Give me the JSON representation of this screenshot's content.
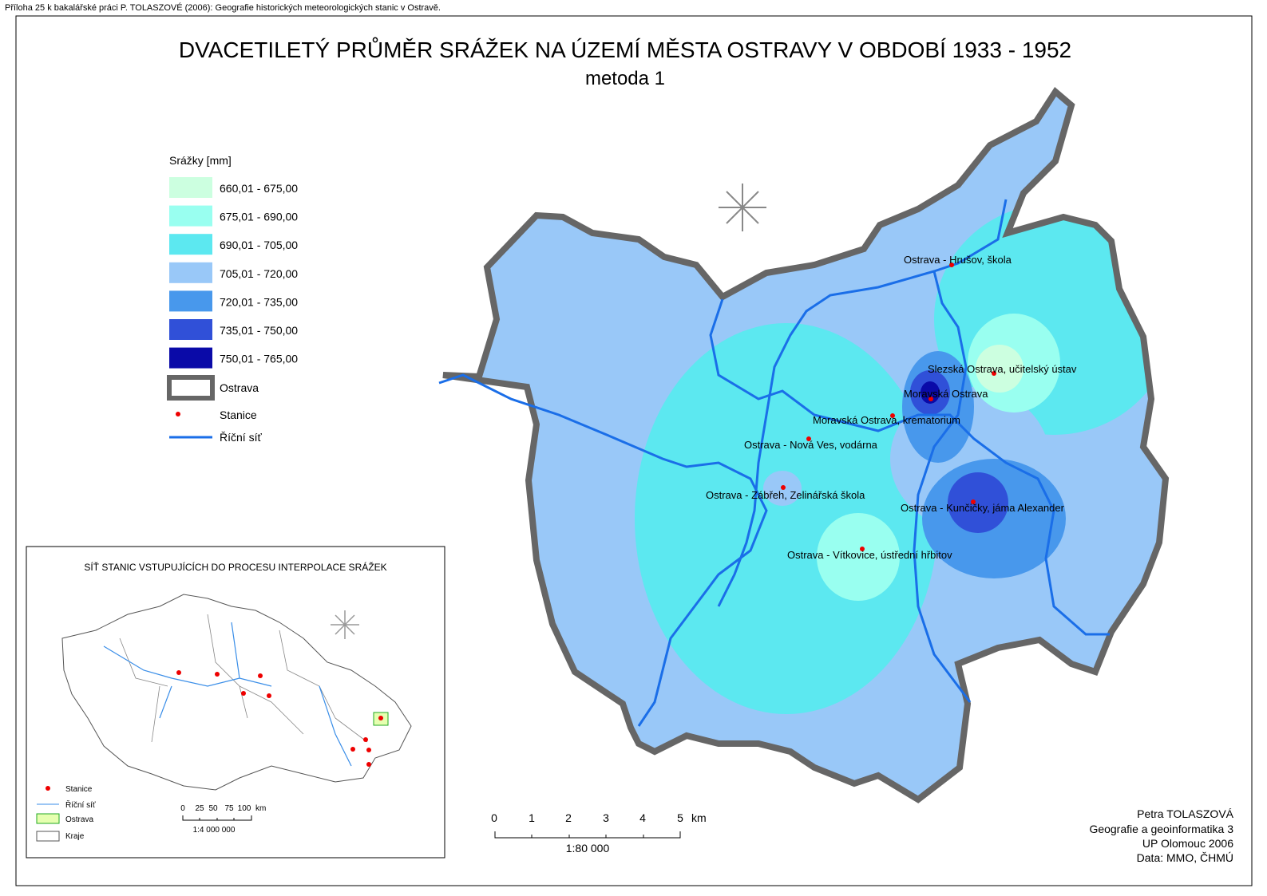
{
  "header_note": "Příloha 25 k bakalářské práci P. TOLASZOVÉ (2006): Geografie historických meteorologických stanic v Ostravě.",
  "title": "DVACETILETÝ PRŮMĚR SRÁŽEK NA ÚZEMÍ MĚSTA OSTRAVY V OBDOBÍ 1933 - 1952",
  "subtitle": "metoda 1",
  "legend": {
    "title": "Srážky [mm]",
    "classes": [
      {
        "label": "660,01 - 675,00",
        "color": "#ccffe0"
      },
      {
        "label": "675,01 - 690,00",
        "color": "#99fff0"
      },
      {
        "label": "690,01 - 705,00",
        "color": "#5ce8f0"
      },
      {
        "label": "705,01 - 720,00",
        "color": "#99c8f8"
      },
      {
        "label": "720,01 - 735,00",
        "color": "#4898ec"
      },
      {
        "label": "735,01 - 750,00",
        "color": "#3050d8"
      },
      {
        "label": "750,01 - 765,00",
        "color": "#0a0aa8"
      }
    ],
    "boundary": "Ostrava",
    "stations": "Stanice",
    "rivers": "Říční síť"
  },
  "stations": [
    "Ostrava - Hrušov, škola",
    "Slezská Ostrava, učitelský ústav",
    "Moravská Ostrava",
    "Moravská Ostrava, krematorium",
    "Ostrava - Nová Ves, vodárna",
    "Ostrava - Zábřeh, Zelinářská škola",
    "Ostrava - Kunčičky, jáma Alexander",
    "Ostrava - Vítkovice, ústřední hřbitov"
  ],
  "scale": {
    "ticks": [
      "0",
      "1",
      "2",
      "3",
      "4",
      "5"
    ],
    "unit": "km",
    "ratio": "1:80 000"
  },
  "credits": [
    "Petra TOLASZOVÁ",
    "Geografie a geoinformatika 3",
    "UP Olomouc 2006",
    "Data: MMO, ČHMÚ"
  ],
  "inset": {
    "title": "SÍŤ STANIC VSTUPUJÍCÍCH DO PROCESU INTERPOLACE SRÁŽEK",
    "legend": [
      "Stanice",
      "Říční síť",
      "Ostrava",
      "Kraje"
    ],
    "scale_ticks": [
      "0",
      "25",
      "50",
      "75",
      "100"
    ],
    "scale_unit": "km",
    "scale_ratio": "1:4 000 000"
  }
}
